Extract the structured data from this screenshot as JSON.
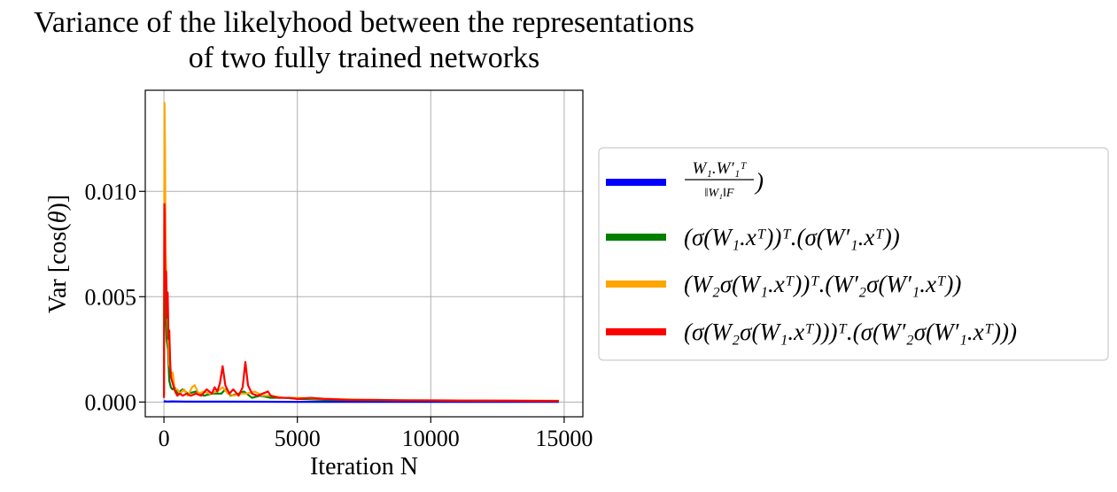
{
  "chart_data": {
    "type": "line",
    "title_lines": [
      "Variance of the likelyhood between the representations",
      "of  two fully trained networks"
    ],
    "xlabel": "Iteration N",
    "ylabel_prefix": "Var [cos(",
    "ylabel_theta": "θ",
    "ylabel_suffix": ")]",
    "xlim": [
      -700,
      15700
    ],
    "ylim": [
      -0.0007,
      0.0148
    ],
    "x_ticks": [
      0,
      5000,
      10000,
      15000
    ],
    "x_tick_labels": [
      "0",
      "5000",
      "10000",
      "15000"
    ],
    "y_ticks": [
      0.0,
      0.005,
      0.01
    ],
    "y_tick_labels": [
      "0.000",
      "0.005",
      "0.010"
    ],
    "grid": true,
    "legend_position": "outside-right",
    "iterations_max": 14800,
    "series": [
      {
        "color": "#0000ff",
        "legend": {
          "frac_num": "W₁.W′₁ᵀ",
          "frac_den": "‖W₁‖F",
          "tail": ")"
        },
        "points": [
          [
            0,
            0.0
          ],
          [
            40,
            4e-05
          ],
          [
            100,
            2e-05
          ],
          [
            300,
            3e-05
          ],
          [
            800,
            2e-05
          ],
          [
            2000,
            2e-05
          ],
          [
            5000,
            1e-05
          ],
          [
            10000,
            1e-05
          ],
          [
            14800,
            1e-05
          ]
        ]
      },
      {
        "color": "#008000",
        "legend": {
          "text": "(σ(W₁.xᵀ))ᵀ.(σ(W′₁.xᵀ))"
        },
        "points": [
          [
            0,
            0.0003
          ],
          [
            20,
            0.0062
          ],
          [
            60,
            0.0048
          ],
          [
            100,
            0.003
          ],
          [
            150,
            0.0025
          ],
          [
            200,
            0.001
          ],
          [
            260,
            0.0007
          ],
          [
            320,
            0.0006
          ],
          [
            400,
            0.0007
          ],
          [
            500,
            0.0004
          ],
          [
            700,
            0.0006
          ],
          [
            900,
            0.0004
          ],
          [
            1200,
            0.0005
          ],
          [
            1500,
            0.0003
          ],
          [
            1800,
            0.0004
          ],
          [
            2000,
            0.0004
          ],
          [
            2150,
            0.0004
          ],
          [
            2300,
            0.0006
          ],
          [
            2500,
            0.0003
          ],
          [
            2800,
            0.0004
          ],
          [
            3000,
            0.0005
          ],
          [
            3300,
            0.0002
          ],
          [
            3600,
            0.0003
          ],
          [
            4000,
            0.0002
          ],
          [
            4500,
            0.0002
          ],
          [
            5000,
            0.00015
          ],
          [
            6000,
            0.0001
          ],
          [
            8000,
            8e-05
          ],
          [
            10000,
            7e-05
          ],
          [
            12000,
            6e-05
          ],
          [
            14800,
            5e-05
          ]
        ]
      },
      {
        "color": "#ffa500",
        "legend": {
          "text": "(W₂σ(W₁.xᵀ))ᵀ.(W′₂σ(W′₁.xᵀ))"
        },
        "points": [
          [
            0,
            0.0004
          ],
          [
            20,
            0.0142
          ],
          [
            40,
            0.012
          ],
          [
            60,
            0.0073
          ],
          [
            90,
            0.006
          ],
          [
            120,
            0.0044
          ],
          [
            160,
            0.0031
          ],
          [
            200,
            0.0018
          ],
          [
            240,
            0.0016
          ],
          [
            280,
            0.0012
          ],
          [
            330,
            0.0014
          ],
          [
            400,
            0.0006
          ],
          [
            500,
            0.0006
          ],
          [
            600,
            0.0004
          ],
          [
            750,
            0.0006
          ],
          [
            900,
            0.0003
          ],
          [
            1050,
            0.0007
          ],
          [
            1150,
            0.0008
          ],
          [
            1300,
            0.0004
          ],
          [
            1500,
            0.0005
          ],
          [
            1700,
            0.0004
          ],
          [
            2000,
            0.0005
          ],
          [
            2200,
            0.0007
          ],
          [
            2400,
            0.0004
          ],
          [
            2600,
            0.0003
          ],
          [
            2900,
            0.0004
          ],
          [
            3100,
            0.0004
          ],
          [
            3400,
            0.0005
          ],
          [
            3700,
            0.0003
          ],
          [
            4000,
            0.0003
          ],
          [
            4500,
            0.0002
          ],
          [
            5000,
            0.0002
          ],
          [
            6000,
            0.00015
          ],
          [
            8000,
            0.0001
          ],
          [
            10000,
            8e-05
          ],
          [
            12000,
            7e-05
          ],
          [
            14800,
            6e-05
          ]
        ]
      },
      {
        "color": "#ff0000",
        "legend": {
          "text": "(σ(W₂σ(W₁.xᵀ)))ᵀ.(σ(W′₂σ(W′₁.xᵀ)))"
        },
        "points": [
          [
            0,
            0.0002
          ],
          [
            15,
            0.0094
          ],
          [
            30,
            0.009
          ],
          [
            50,
            0.0055
          ],
          [
            80,
            0.0062
          ],
          [
            110,
            0.004
          ],
          [
            140,
            0.0052
          ],
          [
            170,
            0.003
          ],
          [
            200,
            0.0034
          ],
          [
            230,
            0.002
          ],
          [
            260,
            0.0012
          ],
          [
            300,
            0.001
          ],
          [
            350,
            0.0008
          ],
          [
            420,
            0.0005
          ],
          [
            500,
            0.0003
          ],
          [
            600,
            0.0004
          ],
          [
            700,
            0.0003
          ],
          [
            850,
            0.0004
          ],
          [
            1000,
            0.0003
          ],
          [
            1200,
            0.0004
          ],
          [
            1400,
            0.0003
          ],
          [
            1600,
            0.0006
          ],
          [
            1800,
            0.0004
          ],
          [
            1900,
            0.0007
          ],
          [
            2000,
            0.0005
          ],
          [
            2100,
            0.0009
          ],
          [
            2200,
            0.0017
          ],
          [
            2300,
            0.0008
          ],
          [
            2450,
            0.0004
          ],
          [
            2600,
            0.0006
          ],
          [
            2800,
            0.0003
          ],
          [
            2950,
            0.0007
          ],
          [
            3050,
            0.0019
          ],
          [
            3150,
            0.0008
          ],
          [
            3300,
            0.0004
          ],
          [
            3500,
            0.0003
          ],
          [
            3700,
            0.0004
          ],
          [
            3900,
            0.0005
          ],
          [
            4000,
            0.0003
          ],
          [
            4300,
            0.0002
          ],
          [
            4700,
            0.0002
          ],
          [
            5000,
            0.00015
          ],
          [
            5500,
            0.0002
          ],
          [
            6000,
            0.00015
          ],
          [
            7000,
            0.0001
          ],
          [
            8000,
            0.0001
          ],
          [
            9000,
            8e-05
          ],
          [
            10000,
            8e-05
          ],
          [
            11000,
            7e-05
          ],
          [
            12000,
            7e-05
          ],
          [
            13000,
            6e-05
          ],
          [
            14000,
            5e-05
          ],
          [
            14800,
            5e-05
          ]
        ]
      }
    ]
  }
}
